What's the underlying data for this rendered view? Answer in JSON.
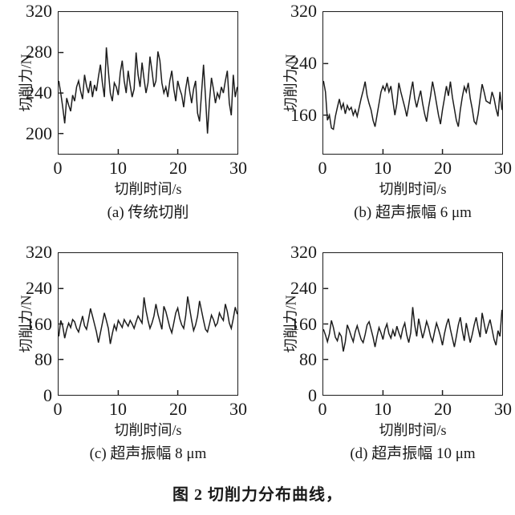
{
  "figure": {
    "caption": "图 2  切削力分布曲线，"
  },
  "style": {
    "background": "#ffffff",
    "line_color": "#1c1c1c",
    "axis_color": "#1c1c1c",
    "text_color": "#1a1a1a"
  },
  "chart_data": [
    {
      "id": "a",
      "type": "line",
      "caption": "(a)  传统切削",
      "xlabel": "切削时间/s",
      "ylabel": "切削力/N",
      "grid": false,
      "legend": "none",
      "xlim": [
        0,
        30
      ],
      "ylim": [
        180,
        320
      ],
      "xticks": [
        0,
        10,
        20,
        30
      ],
      "yticks": [
        200,
        240,
        280,
        320
      ],
      "values": [
        252,
        240,
        226,
        210,
        235,
        228,
        222,
        238,
        232,
        246,
        252,
        242,
        234,
        258,
        247,
        240,
        252,
        236,
        248,
        242,
        256,
        268,
        250,
        236,
        285,
        262,
        240,
        232,
        250,
        246,
        238,
        260,
        272,
        252,
        240,
        262,
        248,
        236,
        244,
        280,
        258,
        246,
        270,
        254,
        240,
        250,
        276,
        262,
        246,
        252,
        281,
        272,
        250,
        240,
        246,
        236,
        252,
        262,
        244,
        232,
        252,
        244,
        238,
        226,
        244,
        256,
        242,
        230,
        244,
        252,
        220,
        212,
        240,
        268,
        236,
        200,
        232,
        255,
        244,
        230,
        240,
        235,
        246,
        240,
        252,
        262,
        230,
        218,
        258,
        236,
        246
      ]
    },
    {
      "id": "b",
      "type": "line",
      "caption": "(b)  超声振幅 6 μm",
      "xlabel": "切削时间/s",
      "ylabel": "切削力/N",
      "grid": false,
      "legend": "none",
      "xlim": [
        0,
        30
      ],
      "ylim": [
        100,
        320
      ],
      "xticks": [
        0,
        10,
        20,
        30
      ],
      "yticks": [
        160,
        240,
        320
      ],
      "values": [
        213,
        196,
        152,
        160,
        140,
        138,
        158,
        172,
        185,
        170,
        178,
        162,
        175,
        168,
        172,
        160,
        168,
        158,
        172,
        186,
        198,
        212,
        190,
        178,
        168,
        152,
        142,
        160,
        178,
        196,
        205,
        198,
        210,
        196,
        205,
        182,
        160,
        178,
        210,
        196,
        184,
        172,
        158,
        176,
        196,
        212,
        186,
        172,
        186,
        198,
        178,
        162,
        150,
        172,
        190,
        212,
        196,
        178,
        160,
        146,
        168,
        186,
        205,
        190,
        212,
        188,
        170,
        152,
        142,
        168,
        188,
        204,
        196,
        210,
        186,
        170,
        150,
        146,
        162,
        186,
        208,
        196,
        182,
        180,
        178,
        196,
        186,
        170,
        158,
        196,
        168
      ]
    },
    {
      "id": "c",
      "type": "line",
      "caption": "(c)  超声振幅 8 μm",
      "xlabel": "切削时间/s",
      "ylabel": "切削力/N",
      "grid": false,
      "legend": "none",
      "xlim": [
        0,
        30
      ],
      "ylim": [
        0,
        320
      ],
      "xticks": [
        0,
        10,
        20,
        30
      ],
      "yticks": [
        0,
        80,
        160,
        240,
        320
      ],
      "values": [
        132,
        168,
        155,
        128,
        148,
        162,
        152,
        170,
        165,
        150,
        142,
        160,
        178,
        156,
        148,
        170,
        195,
        178,
        160,
        142,
        118,
        140,
        162,
        185,
        168,
        150,
        115,
        138,
        158,
        146,
        168,
        160,
        152,
        170,
        162,
        155,
        168,
        160,
        150,
        165,
        178,
        170,
        162,
        220,
        190,
        168,
        150,
        162,
        178,
        205,
        182,
        165,
        148,
        200,
        188,
        170,
        152,
        140,
        162,
        185,
        196,
        172,
        158,
        150,
        178,
        222,
        195,
        168,
        145,
        158,
        178,
        212,
        190,
        168,
        148,
        142,
        160,
        180,
        170,
        155,
        162,
        185,
        175,
        168,
        205,
        188,
        162,
        150,
        172,
        198,
        182
      ]
    },
    {
      "id": "d",
      "type": "line",
      "caption": "(d)  超声振幅 10 μm",
      "xlabel": "切削时间/s",
      "ylabel": "切削力/N",
      "grid": false,
      "legend": "none",
      "xlim": [
        0,
        30
      ],
      "ylim": [
        0,
        320
      ],
      "xticks": [
        0,
        10,
        20,
        30
      ],
      "yticks": [
        0,
        80,
        160,
        240,
        320
      ],
      "values": [
        148,
        135,
        120,
        138,
        168,
        152,
        130,
        122,
        140,
        132,
        98,
        120,
        158,
        146,
        132,
        120,
        142,
        156,
        140,
        125,
        118,
        136,
        158,
        165,
        148,
        130,
        108,
        132,
        152,
        140,
        125,
        148,
        160,
        138,
        128,
        146,
        132,
        155,
        140,
        128,
        150,
        162,
        135,
        118,
        140,
        198,
        158,
        132,
        172,
        150,
        128,
        145,
        166,
        152,
        132,
        120,
        142,
        162,
        148,
        132,
        112,
        138,
        158,
        172,
        148,
        128,
        108,
        132,
        158,
        175,
        145,
        122,
        162,
        140,
        118,
        136,
        158,
        175,
        150,
        130,
        185,
        162,
        138,
        155,
        170,
        148,
        125,
        112,
        145,
        132,
        192
      ]
    }
  ]
}
